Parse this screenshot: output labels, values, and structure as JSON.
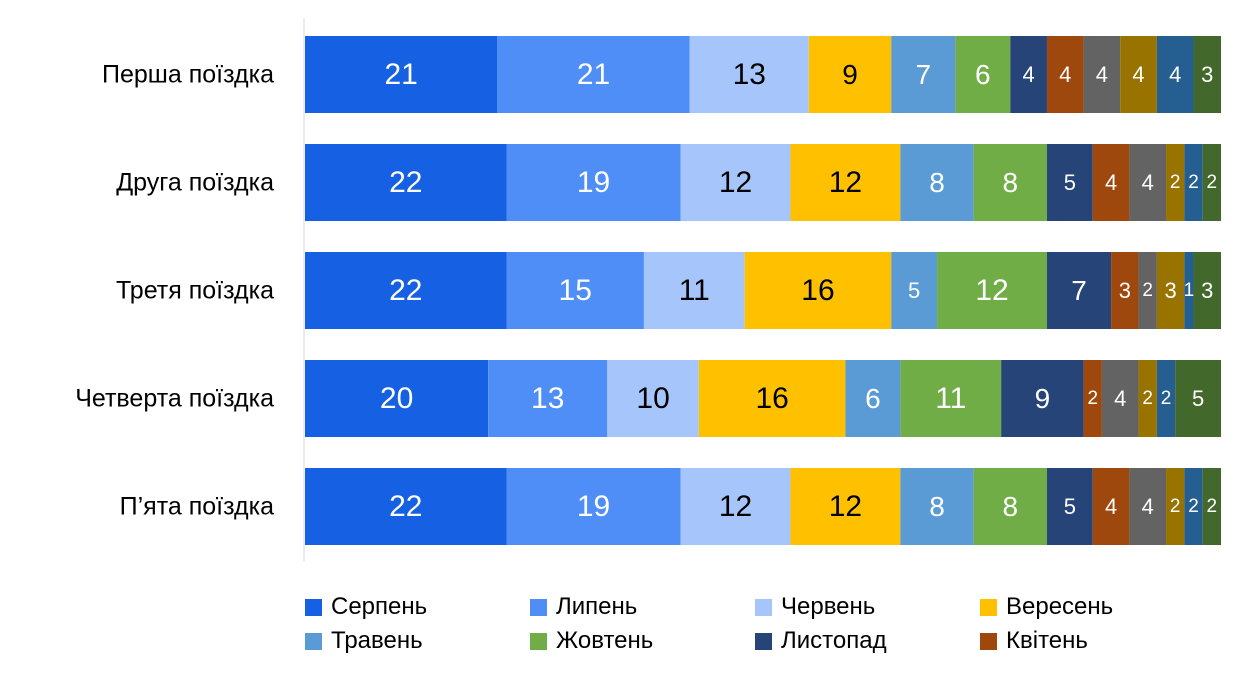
{
  "chart_data": {
    "type": "bar",
    "orientation": "horizontal",
    "stacked": true,
    "categories": [
      "Перша поїздка",
      "Друга поїздка",
      "Третя поїздка",
      "Четверта поїздка",
      "П’ята поїздка"
    ],
    "series": [
      {
        "name": "Серпень",
        "color": "#1660E3",
        "values": [
          21,
          22,
          22,
          20,
          22
        ]
      },
      {
        "name": "Липень",
        "color": "#4F8EF7",
        "values": [
          21,
          19,
          15,
          13,
          19
        ]
      },
      {
        "name": "Червень",
        "color": "#A6C6FB",
        "values": [
          13,
          12,
          11,
          10,
          12
        ]
      },
      {
        "name": "Вересень",
        "color": "#FFC000",
        "values": [
          9,
          12,
          16,
          16,
          12
        ]
      },
      {
        "name": "Травень",
        "color": "#5B9BD5",
        "values": [
          7,
          8,
          5,
          6,
          8
        ]
      },
      {
        "name": "Жовтень",
        "color": "#70AD47",
        "values": [
          6,
          8,
          12,
          11,
          8
        ]
      },
      {
        "name": "Листопад",
        "color": "#264478",
        "values": [
          4,
          5,
          7,
          9,
          5
        ]
      },
      {
        "name": "Квітень",
        "color": "#9E480E",
        "values": [
          4,
          4,
          3,
          2,
          4
        ]
      },
      {
        "name": "",
        "color": "#636363",
        "values": [
          4,
          4,
          2,
          4,
          4
        ]
      },
      {
        "name": "",
        "color": "#997300",
        "values": [
          4,
          2,
          3,
          2,
          2
        ]
      },
      {
        "name": "",
        "color": "#255E91",
        "values": [
          4,
          2,
          1,
          2,
          2
        ]
      },
      {
        "name": "",
        "color": "#43682B",
        "values": [
          3,
          2,
          3,
          5,
          2
        ]
      }
    ],
    "legend_position": "bottom",
    "grid": false,
    "xlim": [
      0,
      100
    ]
  }
}
